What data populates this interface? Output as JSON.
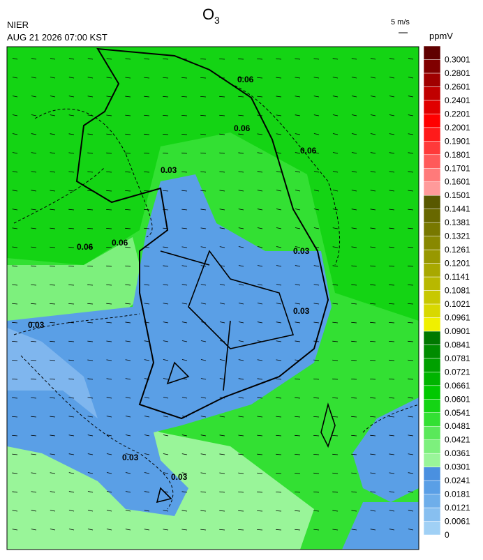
{
  "header": {
    "title": "O",
    "title_sub": "3",
    "org": "NIER",
    "datetime": "AUG 21 2026 07:00 KST"
  },
  "wind_legend": {
    "label": "5 m/s"
  },
  "colorbar": {
    "unit": "ppmV",
    "labels": [
      "0",
      "0.0061",
      "0.0121",
      "0.0181",
      "0.0241",
      "0.0301",
      "0.0361",
      "0.0421",
      "0.0481",
      "0.0541",
      "0.0601",
      "0.0661",
      "0.0721",
      "0.0781",
      "0.0841",
      "0.0901",
      "0.0961",
      "0.1021",
      "0.1081",
      "0.1141",
      "0.1201",
      "0.1261",
      "0.1321",
      "0.1381",
      "0.1441",
      "0.1501",
      "0.1601",
      "0.1701",
      "0.1801",
      "0.1901",
      "0.2001",
      "0.2201",
      "0.2401",
      "0.2601",
      "0.2801",
      "0.3001"
    ],
    "colors": [
      "#a0d0f5",
      "#87bff0",
      "#6eaeea",
      "#5a9fe6",
      "#4a90e0",
      "#99f599",
      "#7df07d",
      "#5ae85a",
      "#33e033",
      "#14d414",
      "#00c800",
      "#00b400",
      "#00a000",
      "#008c00",
      "#007800",
      "#f0f000",
      "#d8d800",
      "#c8c800",
      "#b8b800",
      "#a8a800",
      "#989800",
      "#888800",
      "#787800",
      "#686800",
      "#585800",
      "#ff9a9a",
      "#ff7a7a",
      "#ff5a5a",
      "#ff3a3a",
      "#ff1a1a",
      "#ff0000",
      "#e00000",
      "#c00000",
      "#a00000",
      "#800000",
      "#600000"
    ]
  },
  "contour_labels": [
    "0.03",
    "0.06"
  ]
}
